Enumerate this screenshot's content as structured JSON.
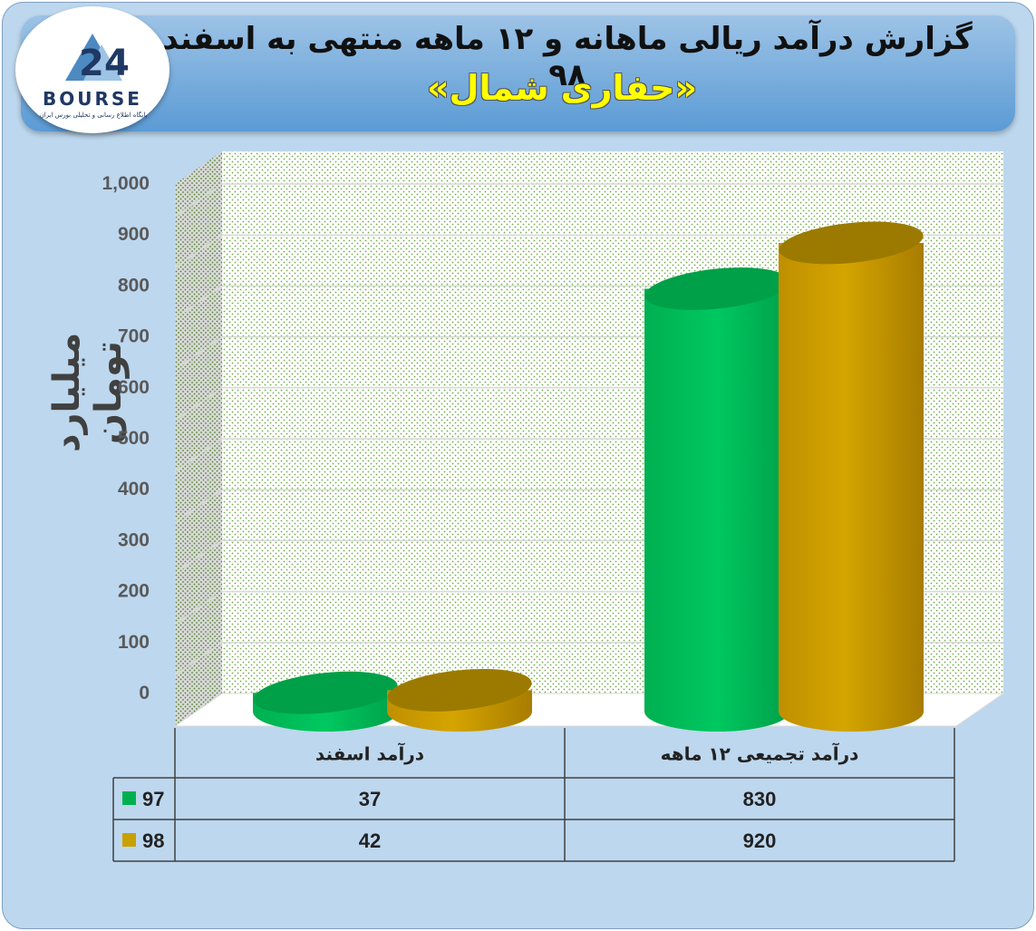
{
  "header": {
    "title": "گزارش درآمد ریالی ماهانه و ۱۲ ماهه منتهی به اسفند ۹۸",
    "subtitle": "«حفاری شمال»"
  },
  "logo": {
    "word": "BOURSE",
    "tagline": "پایگاه اطلاع رسانی و تحلیلی بورس ایران"
  },
  "colors": {
    "series_97": "#00b050",
    "series_98": "#c8a000",
    "frame_bg": "#bdd7ee",
    "banner": "#5b9bd5",
    "subtitle": "#ffff00"
  },
  "chart_data": {
    "type": "bar",
    "ylabel": "میلیارد تومان",
    "ylim": [
      0,
      1000
    ],
    "yticks": [
      "0",
      "100",
      "200",
      "300",
      "400",
      "500",
      "600",
      "700",
      "800",
      "900",
      "1,000"
    ],
    "categories": [
      "درآمد اسفند",
      "درآمد تجمیعی ۱۲ ماهه"
    ],
    "series": [
      {
        "name": "97",
        "values": [
          37,
          830
        ],
        "color": "#00b050"
      },
      {
        "name": "98",
        "values": [
          42,
          920
        ],
        "color": "#c8a000"
      }
    ],
    "grid": true,
    "legend": "data-table",
    "data_table": [
      {
        "name": "97",
        "cells": [
          "37",
          "830"
        ]
      },
      {
        "name": "98",
        "cells": [
          "42",
          "920"
        ]
      }
    ]
  }
}
